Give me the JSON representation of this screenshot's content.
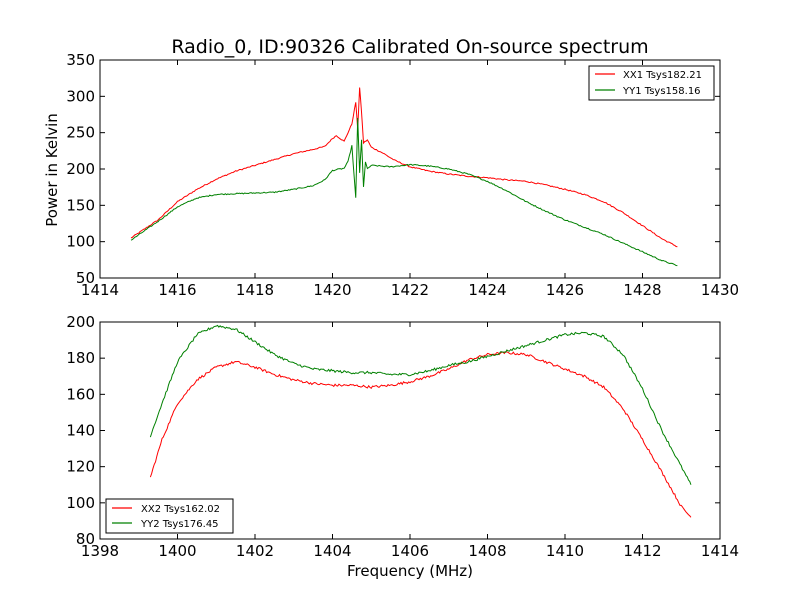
{
  "colors": {
    "red": "#ff0000",
    "green": "#008000"
  },
  "chart_data": [
    {
      "type": "line",
      "title": "Radio_0, ID:90326 Calibrated On-source spectrum",
      "xlabel": "",
      "ylabel": "Power in Kelvin",
      "xlim": [
        1414,
        1430
      ],
      "ylim": [
        50,
        350
      ],
      "xticks": [
        1414,
        1416,
        1418,
        1420,
        1422,
        1424,
        1426,
        1428,
        1430
      ],
      "yticks": [
        50,
        100,
        150,
        200,
        250,
        300,
        350
      ],
      "legend_position": "top-right",
      "grid": false,
      "series": [
        {
          "name": "XX1 Tsys182.21",
          "color": "#ff0000",
          "x": [
            1414.8,
            1415.5,
            1416.0,
            1416.5,
            1417.0,
            1417.5,
            1418.0,
            1418.5,
            1419.0,
            1419.5,
            1419.8,
            1420.0,
            1420.1,
            1420.3,
            1420.5,
            1420.6,
            1420.65,
            1420.7,
            1420.75,
            1420.8,
            1420.9,
            1421.0,
            1421.3,
            1421.6,
            1422.0,
            1422.5,
            1423.0,
            1423.5,
            1424.0,
            1424.5,
            1425.0,
            1425.5,
            1426.0,
            1426.5,
            1427.0,
            1427.5,
            1428.0,
            1428.5,
            1428.9
          ],
          "y": [
            105,
            130,
            155,
            172,
            186,
            197,
            205,
            213,
            221,
            227,
            231,
            242,
            246,
            238,
            262,
            292,
            255,
            312,
            278,
            236,
            240,
            230,
            222,
            212,
            203,
            197,
            193,
            190,
            188,
            185,
            183,
            178,
            172,
            165,
            155,
            140,
            122,
            104,
            93
          ]
        },
        {
          "name": "YY1 Tsys158.16",
          "color": "#008000",
          "x": [
            1414.8,
            1415.5,
            1416.0,
            1416.5,
            1417.0,
            1417.5,
            1418.0,
            1418.5,
            1419.0,
            1419.5,
            1419.8,
            1420.0,
            1420.3,
            1420.4,
            1420.5,
            1420.6,
            1420.65,
            1420.7,
            1420.75,
            1420.8,
            1420.85,
            1420.9,
            1421.0,
            1421.5,
            1422.0,
            1422.5,
            1423.0,
            1423.5,
            1424.0,
            1424.5,
            1425.0,
            1425.5,
            1426.0,
            1426.5,
            1427.0,
            1427.5,
            1428.0,
            1428.5,
            1428.9
          ],
          "y": [
            102,
            128,
            148,
            160,
            165,
            166,
            167,
            168,
            172,
            177,
            185,
            198,
            201,
            210,
            232,
            160,
            270,
            195,
            240,
            175,
            210,
            200,
            205,
            203,
            206,
            204,
            200,
            193,
            183,
            170,
            155,
            142,
            130,
            120,
            110,
            98,
            86,
            74,
            67
          ]
        }
      ]
    },
    {
      "type": "line",
      "title": "",
      "xlabel": "Frequency (MHz)",
      "ylabel": "",
      "xlim": [
        1398,
        1414
      ],
      "ylim": [
        80,
        200
      ],
      "xticks": [
        1398,
        1400,
        1402,
        1404,
        1406,
        1408,
        1410,
        1412,
        1414
      ],
      "yticks": [
        80,
        100,
        120,
        140,
        160,
        180,
        200
      ],
      "legend_position": "bottom-left",
      "grid": false,
      "series": [
        {
          "name": "XX2 Tsys162.02",
          "color": "#ff0000",
          "x": [
            1399.3,
            1399.6,
            1400.0,
            1400.5,
            1401.0,
            1401.5,
            1402.0,
            1402.5,
            1403.0,
            1403.5,
            1404.0,
            1404.5,
            1405.0,
            1405.5,
            1406.0,
            1406.5,
            1407.0,
            1407.5,
            1408.0,
            1408.5,
            1409.0,
            1409.5,
            1410.0,
            1410.5,
            1411.0,
            1411.5,
            1412.0,
            1412.5,
            1413.0,
            1413.25
          ],
          "y": [
            114,
            135,
            155,
            168,
            175,
            178,
            175,
            171,
            168,
            166,
            165,
            165,
            164,
            165,
            167,
            170,
            174,
            179,
            182,
            183,
            182,
            178,
            174,
            170,
            164,
            152,
            135,
            117,
            98,
            92
          ]
        },
        {
          "name": "YY2 Tsys176.45",
          "color": "#008000",
          "x": [
            1399.3,
            1399.6,
            1400.0,
            1400.5,
            1401.0,
            1401.5,
            1402.0,
            1402.5,
            1403.0,
            1403.5,
            1404.0,
            1404.5,
            1405.0,
            1405.5,
            1406.0,
            1406.5,
            1407.0,
            1407.5,
            1408.0,
            1408.5,
            1409.0,
            1409.5,
            1410.0,
            1410.5,
            1411.0,
            1411.5,
            1412.0,
            1412.5,
            1413.0,
            1413.25
          ],
          "y": [
            137,
            155,
            178,
            193,
            198,
            196,
            189,
            182,
            177,
            174,
            173,
            172,
            172,
            171,
            171,
            173,
            176,
            178,
            181,
            184,
            187,
            190,
            193,
            194,
            192,
            182,
            163,
            140,
            120,
            110
          ]
        }
      ]
    }
  ]
}
